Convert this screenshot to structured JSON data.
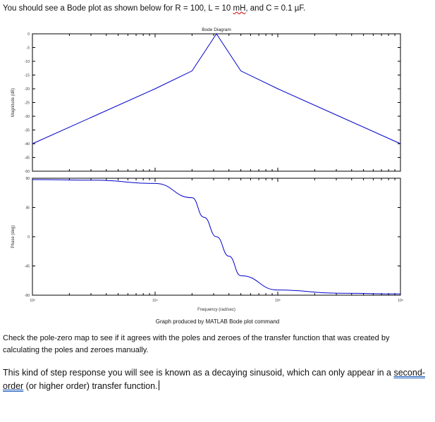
{
  "intro": {
    "prefix": "You should see a Bode plot as shown below for R = 100, L = 10 ",
    "mh": "mH",
    "suffix": ", and C = 0.1 µF."
  },
  "chart_data": [
    {
      "type": "line",
      "title": "Bode Diagram",
      "ylabel": "Magnitude (dB)",
      "ylim": [
        -50,
        0
      ],
      "yticks": [
        "0",
        "-5",
        "-10",
        "-15",
        "-20",
        "-25",
        "-30",
        "-35",
        "-40",
        "-45",
        "-50"
      ],
      "x_scale": "log",
      "xlim": [
        1000,
        1000000
      ],
      "series": [
        {
          "x": [
            1000,
            3162,
            10000,
            20000,
            31623,
            50000,
            100000,
            316228,
            1000000
          ],
          "y": [
            -40,
            -30,
            -20,
            -13.5,
            0,
            -13.5,
            -20,
            -30,
            -40
          ]
        }
      ]
    },
    {
      "type": "line",
      "ylabel": "Phase (deg)",
      "ylim": [
        -90,
        90
      ],
      "yticks": [
        "90",
        "45",
        "0",
        "-45",
        "-90"
      ],
      "x_scale": "log",
      "xlim": [
        1000,
        1000000
      ],
      "xlabel": "Frequency (rad/sec)",
      "xticks": [
        "10³",
        "10⁴",
        "10⁵",
        "10⁶"
      ],
      "series": [
        {
          "x": [
            1000,
            3162,
            10000,
            20000,
            25000,
            31623,
            40000,
            50000,
            100000,
            316228,
            1000000
          ],
          "y": [
            88,
            87,
            82,
            60,
            30,
            0,
            -30,
            -60,
            -82,
            -87,
            -88
          ]
        }
      ]
    }
  ],
  "caption": "Graph produced by MATLAB Bode plot command",
  "para1": "Check the pole-zero map to see if it agrees with the poles and zeroes of the transfer function that was created by calculating the poles and zeroes manually.",
  "para2": {
    "a": "This kind of step response you will see is known as a decaying sinusoid, which can only appear in a ",
    "b": "second-order",
    "c": " (or higher order) transfer function."
  },
  "colors": {
    "line": "#0000cc",
    "axis": "#000000"
  }
}
